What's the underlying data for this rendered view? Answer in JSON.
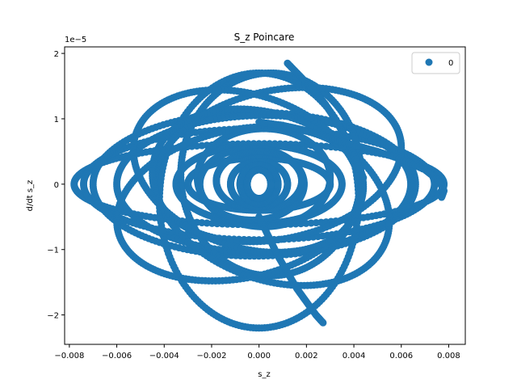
{
  "chart_data": {
    "type": "scatter",
    "title": "S_z Poincare",
    "xlabel": "s_z",
    "ylabel": "d/dt s_z",
    "y_offset_label": "1e−5",
    "xlim": [
      -0.0082,
      0.0087
    ],
    "ylim": [
      -2.45,
      2.1
    ],
    "x_ticks": [
      -0.008,
      -0.006,
      -0.004,
      -0.002,
      0.0,
      0.002,
      0.004,
      0.006,
      0.008
    ],
    "x_tick_labels": [
      "−0.008",
      "−0.006",
      "−0.004",
      "−0.002",
      "0.000",
      "0.002",
      "0.004",
      "0.006",
      "0.008"
    ],
    "y_ticks": [
      -2,
      -1,
      0,
      1,
      2
    ],
    "y_tick_labels": [
      "−2",
      "−1",
      "0",
      "1",
      "2"
    ],
    "y_unit_note": "y values are in units of 1e-5",
    "grid": false,
    "legend_position": "top-right",
    "series": [
      {
        "name": "0",
        "color": "#1f77b4",
        "marker": "circle",
        "loops": [
          {
            "cx": 0.0,
            "cy": 0.0,
            "rx": 0.0078,
            "ry": 0.62,
            "tilt": 0.0
          },
          {
            "cx": 0.0,
            "cy": 0.0,
            "rx": 0.0074,
            "ry": 0.85,
            "tilt": 0.0
          },
          {
            "cx": -0.0002,
            "cy": 0.0,
            "rx": 0.0068,
            "ry": 1.1,
            "tilt": 0.0
          },
          {
            "cx": 0.0002,
            "cy": 0.0,
            "rx": 0.0062,
            "ry": 1.05,
            "tilt": 0.0
          },
          {
            "cx": 0.0,
            "cy": -0.25,
            "rx": 0.0042,
            "ry": 1.95,
            "tilt": 0.0
          },
          {
            "cx": 0.0005,
            "cy": 0.15,
            "rx": 0.0038,
            "ry": 1.55,
            "tilt": 0.0
          },
          {
            "cx": 0.0,
            "cy": 0.0,
            "rx": 0.0035,
            "ry": 0.6,
            "tilt": 0.0
          },
          {
            "cx": 0.0,
            "cy": 0.0,
            "rx": 0.003,
            "ry": 0.4,
            "tilt": 0.0
          },
          {
            "cx": 0.0002,
            "cy": 0.1,
            "rx": 0.0028,
            "ry": 0.75,
            "tilt": 0.0
          },
          {
            "cx": -0.0003,
            "cy": 0.0,
            "rx": 0.0022,
            "ry": 0.55,
            "tilt": 0.0
          },
          {
            "cx": 0.0,
            "cy": 0.05,
            "rx": 0.0018,
            "ry": 0.45,
            "tilt": 0.0
          },
          {
            "cx": 0.0,
            "cy": 0.0,
            "rx": 0.0012,
            "ry": 0.35,
            "tilt": 0.0
          },
          {
            "cx": 0.0,
            "cy": 0.0,
            "rx": 0.0008,
            "ry": 0.3,
            "tilt": 0.0
          },
          {
            "cx": 0.0,
            "cy": 0.0,
            "rx": 0.0005,
            "ry": 0.22,
            "tilt": 0.0
          },
          {
            "cx": -0.0008,
            "cy": -0.3,
            "rx": 0.0052,
            "ry": 1.15,
            "tilt": 0.35
          },
          {
            "cx": 0.0008,
            "cy": 0.3,
            "rx": 0.0052,
            "ry": 1.15,
            "tilt": 0.35
          },
          {
            "cx": 0.0005,
            "cy": -0.2,
            "rx": 0.005,
            "ry": 1.3,
            "tilt": -0.45
          },
          {
            "cx": -0.0005,
            "cy": 0.2,
            "rx": 0.0048,
            "ry": 1.2,
            "tilt": -0.45
          }
        ],
        "strands": [
          {
            "x": [
              0.0012,
              0.0016,
              0.002,
              0.0024,
              0.0028,
              0.0032,
              0.0036,
              0.004,
              0.0044
            ],
            "y": [
              1.85,
              1.7,
              1.55,
              1.4,
              1.22,
              1.0,
              0.75,
              0.45,
              0.1
            ]
          },
          {
            "x": [
              0.0,
              0.0004,
              0.0008,
              0.0012,
              0.0016,
              0.002,
              0.0024,
              0.0027
            ],
            "y": [
              -0.5,
              -0.8,
              -1.1,
              -1.35,
              -1.6,
              -1.8,
              -2.0,
              -2.12
            ]
          },
          {
            "x": [
              0.0,
              0.001,
              0.002,
              0.003,
              0.004,
              0.005,
              0.006,
              0.007,
              0.0076,
              0.0078,
              0.0077
            ],
            "y": [
              0.95,
              0.9,
              0.82,
              0.7,
              0.6,
              0.5,
              0.38,
              0.22,
              0.05,
              -0.1,
              -0.2
            ]
          }
        ]
      }
    ]
  }
}
